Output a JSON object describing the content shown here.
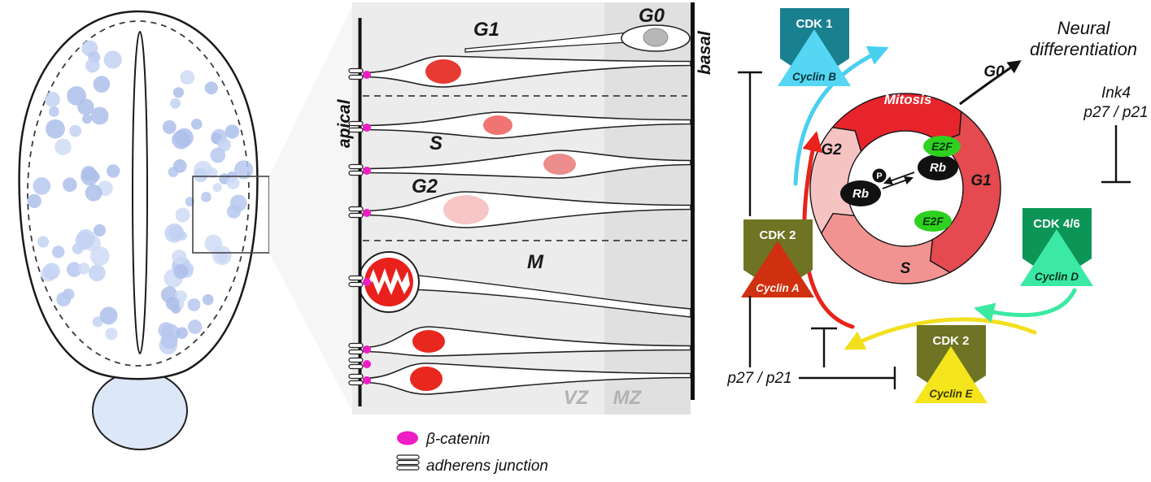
{
  "middle_panel": {
    "apical": "apical",
    "basal": "basal",
    "phase_g1": "G1",
    "phase_g0": "G0",
    "phase_s": "S",
    "phase_g2": "G2",
    "phase_m": "M",
    "zone_vz": "VZ",
    "zone_mz": "MZ",
    "legend_beta_catenin": "β-catenin",
    "legend_adherens": "adherens junction"
  },
  "cell_cycle": {
    "ring_mitosis": "Mitosis",
    "ring_g1": "G1",
    "ring_s": "S",
    "ring_g2": "G2",
    "rb_left": "Rb",
    "rb_right": "Rb",
    "phospho": "P",
    "e2f_top": "E2F",
    "e2f_bottom": "E2F",
    "g0": "G0",
    "neural_line1": "Neural",
    "neural_line2": "differentiation",
    "cdk1": "CDK 1",
    "cyclin_b": "Cyclin B",
    "cdk2_a": "CDK 2",
    "cyclin_a": "Cyclin A",
    "cdk2_e": "CDK 2",
    "cyclin_e": "Cyclin E",
    "cdk46": "CDK 4/6",
    "cyclin_d": "Cyclin D",
    "ink4_line1": "Ink4",
    "ink4_line2": "p27 / p21",
    "p27_label": "p27 / p21"
  },
  "colors": {
    "beta_catenin": "#ee1dc6",
    "mitosis": "#e7242b",
    "g1": "#e44a50",
    "s": "#f29391",
    "g2": "#f6c3c3",
    "cdk1": "#19808f",
    "cyclin_b": "#55d6f2",
    "cdk2": "#6e7424",
    "cyclin_a": "#d03010",
    "cyclin_e": "#f4e51c",
    "cdk46": "#0d9558",
    "cyclin_d": "#3be9a4",
    "e2f": "#2ed11f",
    "embryo_cell": "#bcccf0"
  }
}
